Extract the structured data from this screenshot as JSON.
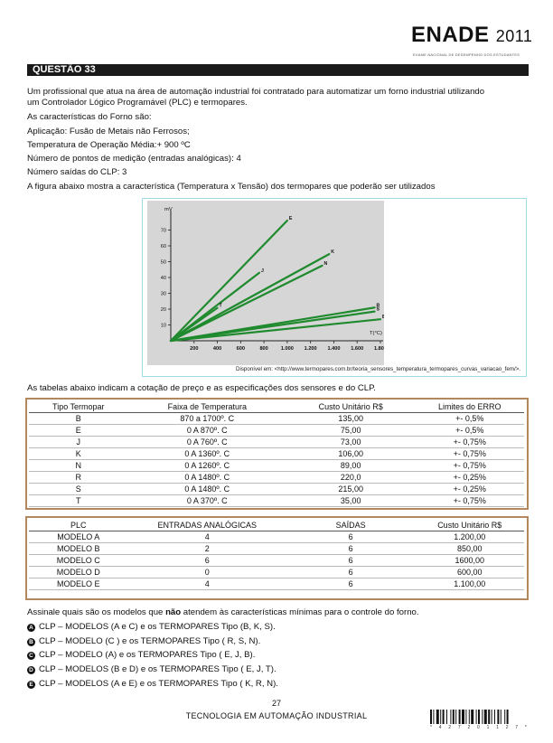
{
  "header": {
    "brand": "ENADE",
    "year": "2011",
    "subline": "EXAME NACIONAL DE DESEMPENHO DOS ESTUDANTES"
  },
  "question_title": "QUESTÃO 33",
  "paragraphs": [
    "Um profissional que atua na área de automação industrial foi contratado para automatizar um forno industrial utilizando",
    "um Controlador Lógico Programável (PLC) e termopares.",
    "As características do Forno são:",
    "Aplicação: Fusão de Metais não Ferrosos;",
    "Temperatura de Operação Média:+ 900 ºC",
    "Número de pontos de medição (entradas analógicas): 4",
    "Número saídas do CLP: 3",
    "A figura abaixo mostra a característica (Temperatura x Tensão) dos termopares que poderão ser utilizados"
  ],
  "chart_data": {
    "type": "line",
    "ylabel": "mV",
    "xlabel": "T(°C)",
    "xlim": [
      0,
      1800
    ],
    "ylim": [
      0,
      80
    ],
    "xticks": [
      200,
      400,
      600,
      800,
      1000,
      1200,
      1400,
      1600,
      1800
    ],
    "xtick_labels": [
      "200",
      "400",
      "600",
      "800",
      "1.000",
      "1.200",
      "1.400",
      "1.600",
      "1.800"
    ],
    "yticks": [
      10,
      20,
      30,
      40,
      50,
      60,
      70
    ],
    "grid": false,
    "legend": "labels at line ends",
    "series": [
      {
        "name": "E",
        "x": [
          0,
          1000
        ],
        "y": [
          0,
          76
        ]
      },
      {
        "name": "K",
        "x": [
          0,
          1360
        ],
        "y": [
          0,
          54.8
        ]
      },
      {
        "name": "N",
        "x": [
          0,
          1300
        ],
        "y": [
          0,
          47.5
        ]
      },
      {
        "name": "J",
        "x": [
          0,
          760
        ],
        "y": [
          0,
          43
        ]
      },
      {
        "name": "T",
        "x": [
          0,
          400
        ],
        "y": [
          0,
          20.8
        ]
      },
      {
        "name": "R",
        "x": [
          0,
          1750
        ],
        "y": [
          0,
          21
        ]
      },
      {
        "name": "S",
        "x": [
          0,
          1750
        ],
        "y": [
          0,
          18.5
        ]
      },
      {
        "name": "B",
        "x": [
          0,
          1800
        ],
        "y": [
          0,
          13.6
        ]
      }
    ],
    "source": "Disponível em: <http://www.termopares.com.br/teoria_sensores_temperatura_termopares_curvas_variacao_fem/>."
  },
  "table_intro": "As tabelas abaixo indicam a cotação de preço e as especificações dos sensores e do CLP.",
  "sensors_table": {
    "headers": [
      "Tipo Termopar",
      "Faixa de Temperatura",
      "Custo Unitário R$",
      "Limites do ERRO"
    ],
    "rows": [
      [
        "B",
        "870 a  1700º. C",
        "135,00",
        "+- 0,5%"
      ],
      [
        "E",
        "0 A 870º. C",
        "75,00",
        "+- 0,5%"
      ],
      [
        "J",
        "0 A 760º. C",
        "73,00",
        "+- 0,75%"
      ],
      [
        "K",
        "0 A 1360º. C",
        "106,00",
        "+- 0,75%"
      ],
      [
        "N",
        "0 A 1260º. C",
        "89,00",
        "+- 0,75%"
      ],
      [
        "R",
        "0 A 1480º. C",
        "220,0",
        "+- 0,25%"
      ],
      [
        "S",
        "0 A 1480º. C",
        "215,00",
        "+- 0,25%"
      ],
      [
        "T",
        "0 A 370º. C",
        "35,00",
        "+- 0,75%"
      ]
    ]
  },
  "plc_table": {
    "headers": [
      "PLC",
      "ENTRADAS ANALÓGICAS",
      "SAÍDAS",
      "Custo Unitário R$"
    ],
    "rows": [
      [
        "MODELO A",
        "4",
        "6",
        "1.200,00"
      ],
      [
        "MODELO B",
        "2",
        "6",
        "850,00"
      ],
      [
        "MODELO C",
        "6",
        "6",
        "1600,00"
      ],
      [
        "MODELO D",
        "0",
        "6",
        "600,00"
      ],
      [
        "MODELO E",
        "4",
        "6",
        "1.100,00"
      ]
    ]
  },
  "prompt": {
    "before": "Assinale quais são os modelos que ",
    "bold": "não",
    "after": " atendem às características mínimas para o controle do forno."
  },
  "options": [
    {
      "letter": "A",
      "text": "CLP – MODELOS (A e C) e os TERMOPARES Tipo (B, K, S)."
    },
    {
      "letter": "B",
      "text": "CLP – MODELO (C ) e os TERMOPARES Tipo ( R, S, N)."
    },
    {
      "letter": "C",
      "text": "CLP – MODELO (A) e os TERMOPARES Tipo ( E, J, B)."
    },
    {
      "letter": "D",
      "text": "CLP – MODELOS (B e D) e os TERMOPARES Tipo ( E, J, T)."
    },
    {
      "letter": "E",
      "text": "CLP – MODELOS (A e E) e os TERMOPARES Tipo ( K, R, N)."
    }
  ],
  "footer": {
    "page": "27",
    "course": "TECNOLOGIA EM AUTOMAÇÃO INDUSTRIAL",
    "barcode_number": "* 4 2 7 2 0 1 1 2 7 *"
  }
}
